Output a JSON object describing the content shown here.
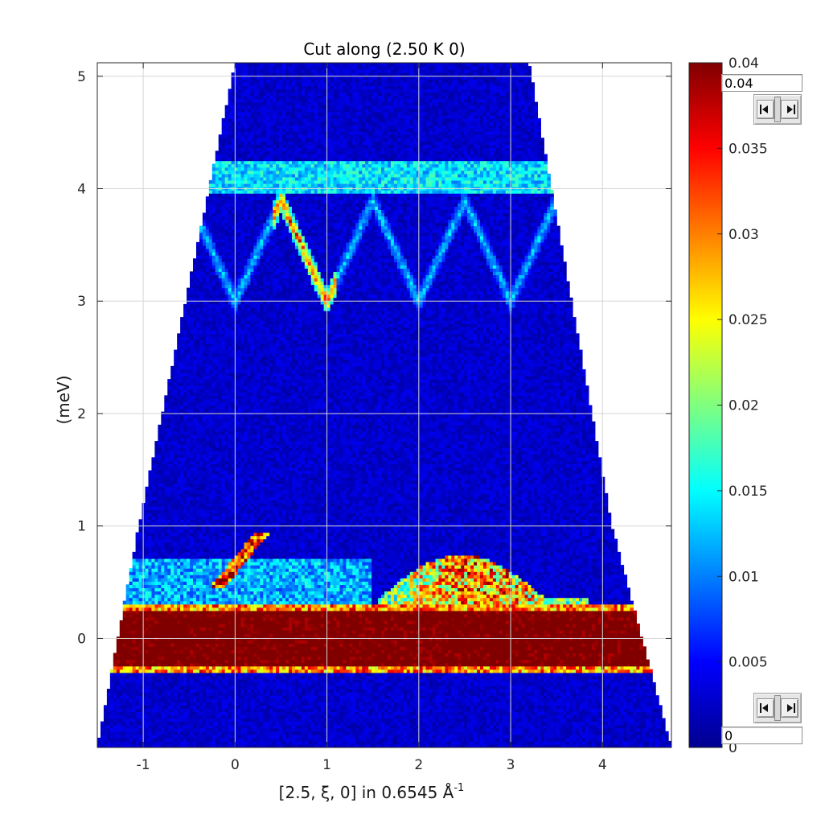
{
  "chart_data": {
    "type": "heatmap",
    "title": "Cut along (2.50 K 0)",
    "xlabel": "[2.5, ξ, 0] in 0.6545 Å",
    "xlabel_superscript": "-1",
    "ylabel": "(meV)",
    "xlim": [
      -1.5,
      4.75
    ],
    "ylim": [
      -0.97,
      5.12
    ],
    "xticks": [
      -1,
      0,
      1,
      2,
      3,
      4
    ],
    "xtick_labels": [
      "-1",
      "0",
      "1",
      "2",
      "3",
      "4"
    ],
    "yticks": [
      0,
      1,
      2,
      3,
      4,
      5
    ],
    "ytick_labels": [
      "0",
      "1",
      "2",
      "3",
      "4",
      "5"
    ],
    "grid": true,
    "colormap": "jet",
    "color_range": [
      0,
      0.04
    ],
    "colorbar_ticks": [
      0,
      0.005,
      0.01,
      0.015,
      0.02,
      0.025,
      0.03,
      0.035,
      0.04
    ],
    "colorbar_tick_labels": [
      "0",
      "0.005",
      "0.01",
      "0.015",
      "0.02",
      "0.025",
      "0.03",
      "0.035",
      "0.04"
    ],
    "features": {
      "coverage_top_x": [
        0.0,
        3.2
      ],
      "coverage_mid_x": [
        -1.05,
        4.1
      ],
      "coverage_bottom_x": [
        -1.5,
        4.75
      ],
      "elastic_line": {
        "energy": 0.0,
        "half_width": 0.25,
        "intensity": 0.04
      },
      "upper_flat_band": {
        "energy": 4.1,
        "intensity": 0.014
      },
      "dispersive_band": {
        "energy_min": 3.0,
        "energy_max": 3.9,
        "period": 1.0,
        "minima_x": [
          0,
          1,
          2,
          3
        ],
        "maxima_x": [
          -0.5,
          0.5,
          1.5,
          2.5,
          3.5
        ],
        "intensity": 0.013,
        "strong_branch_x": [
          0.4,
          1.1
        ],
        "strong_intensity": 0.03
      },
      "low_energy_band": {
        "x_range": [
          1.55,
          3.85
        ],
        "energy_peak": 0.6,
        "energy_base": 0.3,
        "intensity": 0.034
      },
      "low_energy_streak": {
        "x_range": [
          -0.2,
          0.3
        ],
        "energy_range": [
          0.45,
          0.95
        ],
        "intensity": 0.034
      },
      "background_intensity": 0.003
    }
  },
  "controls": {
    "max_value": "0.04",
    "min_value": "0"
  }
}
